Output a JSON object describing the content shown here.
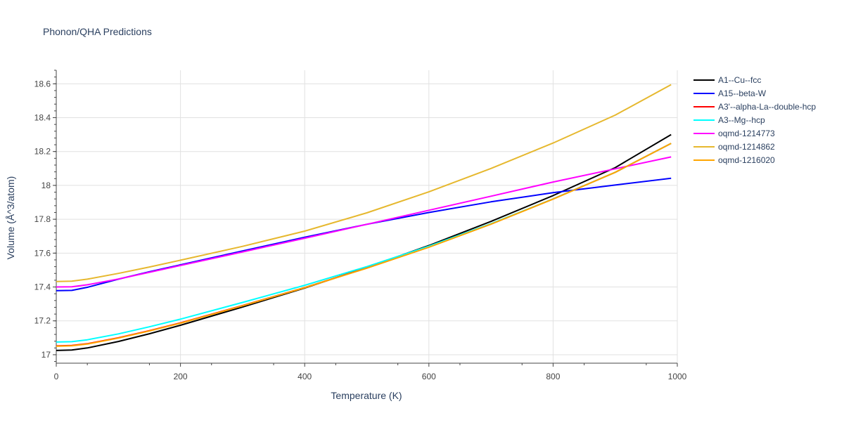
{
  "chart_data": {
    "type": "line",
    "title": "Phonon/QHA Predictions",
    "xlabel": "Temperature (K)",
    "ylabel": "Volume (Å^3/atom)",
    "xlim": [
      0,
      1000
    ],
    "ylim": [
      16.95,
      18.68
    ],
    "xticks": [
      0,
      200,
      400,
      600,
      800,
      1000
    ],
    "xtick_labels": [
      "0",
      "200",
      "400",
      "600",
      "800",
      "1000"
    ],
    "yticks": [
      17.0,
      17.2,
      17.4,
      17.6,
      17.8,
      18.0,
      18.2,
      18.4,
      18.6
    ],
    "ytick_labels": [
      "17",
      "17.2",
      "17.4",
      "17.6",
      "17.8",
      "18",
      "18.2",
      "18.4",
      "18.6"
    ],
    "grid": true,
    "legend_position": "right",
    "x": [
      0,
      25,
      50,
      100,
      150,
      200,
      300,
      400,
      500,
      600,
      700,
      800,
      900,
      990
    ],
    "series": [
      {
        "name": "A1--Cu--fcc",
        "color": "#000000",
        "values": [
          17.025,
          17.028,
          17.04,
          17.078,
          17.124,
          17.174,
          17.282,
          17.394,
          17.515,
          17.645,
          17.787,
          17.94,
          18.105,
          18.3
        ]
      },
      {
        "name": "A15--beta-W",
        "color": "#0000ff",
        "values": [
          17.378,
          17.38,
          17.398,
          17.446,
          17.49,
          17.531,
          17.613,
          17.694,
          17.77,
          17.84,
          17.903,
          17.957,
          18.002,
          18.042
        ]
      },
      {
        "name": "A3'--alpha-La--double-hcp",
        "color": "#ff0000",
        "values": [
          17.052,
          17.055,
          17.065,
          17.1,
          17.142,
          17.188,
          17.29,
          17.397,
          17.512,
          17.636,
          17.772,
          17.92,
          18.077,
          18.248
        ]
      },
      {
        "name": "A3--Mg--hcp",
        "color": "#00ffff",
        "values": [
          17.075,
          17.077,
          17.088,
          17.123,
          17.165,
          17.21,
          17.309,
          17.41,
          17.52,
          17.641,
          17.774,
          17.92,
          18.077,
          18.248
        ]
      },
      {
        "name": "oqmd-1214773",
        "color": "#ff00ff",
        "values": [
          17.4,
          17.401,
          17.413,
          17.447,
          17.487,
          17.527,
          17.607,
          17.688,
          17.77,
          17.853,
          17.936,
          18.02,
          18.098,
          18.168
        ]
      },
      {
        "name": "oqmd-1214862",
        "color": "#e6b82e",
        "values": [
          17.432,
          17.434,
          17.446,
          17.48,
          17.518,
          17.558,
          17.64,
          17.73,
          17.838,
          17.962,
          18.1,
          18.25,
          18.415,
          18.595
        ]
      },
      {
        "name": "oqmd-1216020",
        "color": "#ffa500",
        "values": [
          17.05,
          17.053,
          17.063,
          17.098,
          17.14,
          17.186,
          17.289,
          17.396,
          17.511,
          17.635,
          17.771,
          17.919,
          18.077,
          18.248
        ]
      }
    ]
  }
}
